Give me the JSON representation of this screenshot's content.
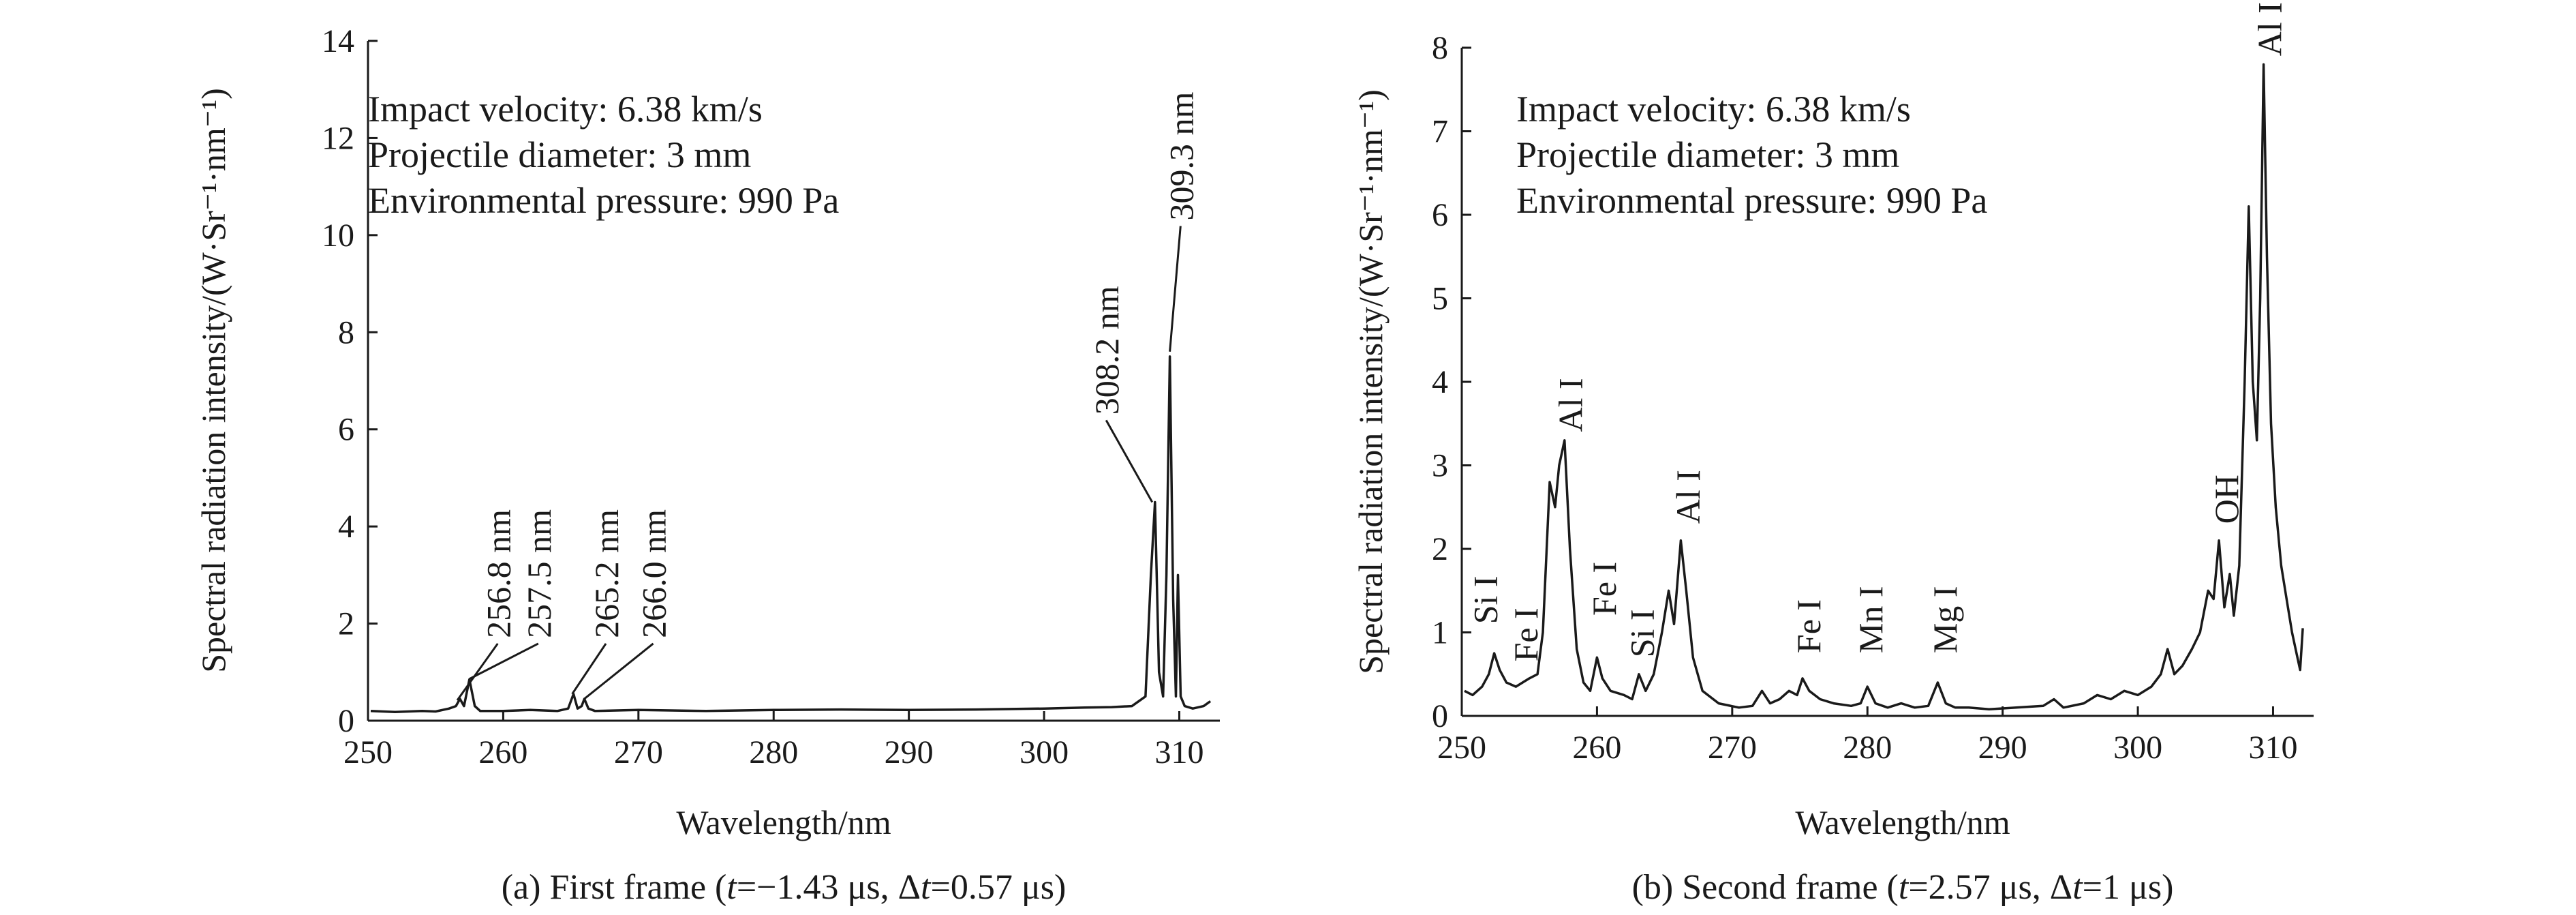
{
  "chart_data": [
    {
      "type": "line",
      "id": "a",
      "xlabel": "Wavelength/nm",
      "ylabel": "Spectral radiation intensity/(W·Sr⁻¹·nm⁻¹)",
      "xlim": [
        250,
        313
      ],
      "ylim": [
        0,
        14
      ],
      "xticks": [
        250,
        260,
        270,
        280,
        290,
        300,
        310
      ],
      "yticks": [
        0,
        2,
        4,
        6,
        8,
        10,
        12,
        14
      ],
      "info": [
        "Impact velocity: 6.38 km/s",
        "Projectile diameter: 3 mm",
        "Environmental pressure: 990 Pa"
      ],
      "caption": {
        "prefix": "(a) First frame (",
        "t_symbol": "t",
        "t_value": "=−1.43 μs, Δ",
        "dt_symbol": "t",
        "dt_value": "=0.57 μs)"
      },
      "annotations": [
        {
          "text": "256.8 nm",
          "x": 256.8,
          "y": 0.45
        },
        {
          "text": "257.5 nm",
          "x": 257.5,
          "y": 0.85
        },
        {
          "text": "265.2 nm",
          "x": 265.2,
          "y": 0.55
        },
        {
          "text": "266.0 nm",
          "x": 266.0,
          "y": 0.45
        },
        {
          "text": "308.2 nm",
          "x": 308.2,
          "y": 4.5
        },
        {
          "text": "309.3 nm",
          "x": 309.3,
          "y": 7.5
        }
      ],
      "series": [
        {
          "x": [
            250.2,
            252,
            254,
            255,
            256,
            256.5,
            256.8,
            257.1,
            257.5,
            257.9,
            258.3,
            260,
            262,
            264,
            264.8,
            265.2,
            265.5,
            265.8,
            266.0,
            266.3,
            266.8,
            270,
            275,
            280,
            285,
            290,
            295,
            300,
            303,
            305,
            306.5,
            307.5,
            307.9,
            308.2,
            308.5,
            308.8,
            309.05,
            309.3,
            309.55,
            309.75,
            309.9,
            310.1,
            310.4,
            311,
            311.8,
            312.3
          ],
          "y": [
            0.2,
            0.18,
            0.2,
            0.19,
            0.25,
            0.3,
            0.45,
            0.3,
            0.85,
            0.3,
            0.2,
            0.2,
            0.22,
            0.2,
            0.25,
            0.55,
            0.25,
            0.3,
            0.45,
            0.25,
            0.2,
            0.22,
            0.2,
            0.22,
            0.23,
            0.22,
            0.23,
            0.25,
            0.27,
            0.28,
            0.3,
            0.5,
            3.0,
            4.5,
            1.0,
            0.5,
            3.0,
            7.5,
            2.5,
            0.5,
            3.0,
            0.5,
            0.3,
            0.25,
            0.3,
            0.4
          ]
        }
      ]
    },
    {
      "type": "line",
      "id": "b",
      "xlabel": "Wavelength/nm",
      "ylabel": "Spectral radiation intensity/(W·Sr⁻¹·nm⁻¹)",
      "xlim": [
        250,
        313
      ],
      "ylim": [
        0,
        8
      ],
      "xticks": [
        250,
        260,
        270,
        280,
        290,
        300,
        310
      ],
      "yticks": [
        0,
        1,
        2,
        3,
        4,
        5,
        6,
        7,
        8
      ],
      "info": [
        "Impact velocity: 6.38 km/s",
        "Projectile diameter: 3 mm",
        "Environmental pressure: 990 Pa"
      ],
      "caption": {
        "prefix": "(b) Second frame (",
        "t_symbol": "t",
        "t_value": "=2.57 μs, Δ",
        "dt_symbol": "t",
        "dt_value": "=1 μs)"
      },
      "annotations": [
        {
          "text": "Si I",
          "x": 251.7,
          "y": 0.85
        },
        {
          "text": "Fe I",
          "x": 254.8,
          "y": 0.45
        },
        {
          "text": "Al I",
          "x": 257.6,
          "y": 3.3
        },
        {
          "text": "Fe I",
          "x": 260.2,
          "y": 0.95
        },
        {
          "text": "Si I",
          "x": 263.1,
          "y": 0.55
        },
        {
          "text": "Al I",
          "x": 266.2,
          "y": 2.15
        },
        {
          "text": "Fe I",
          "x": 275.2,
          "y": 0.55
        },
        {
          "text": "Mn I",
          "x": 279.8,
          "y": 0.55
        },
        {
          "text": "Mg I",
          "x": 285.2,
          "y": 0.55
        },
        {
          "text": "OH",
          "x": 306.0,
          "y": 2.2
        },
        {
          "text": "Al I",
          "x": 309.3,
          "y": 7.8
        }
      ],
      "series": [
        {
          "x": [
            250.2,
            250.8,
            251.5,
            252.0,
            252.4,
            252.8,
            253.3,
            254,
            255,
            255.6,
            256.0,
            256.5,
            256.9,
            257.2,
            257.6,
            258.0,
            258.5,
            259.0,
            259.5,
            260.0,
            260.4,
            261,
            262,
            262.6,
            263.1,
            263.6,
            264.2,
            264.8,
            265.3,
            265.7,
            266.2,
            266.6,
            267.1,
            267.8,
            269,
            270.5,
            271.5,
            272.2,
            272.8,
            273.5,
            274.2,
            274.8,
            275.2,
            275.7,
            276.5,
            277.5,
            278.8,
            279.5,
            280.0,
            280.6,
            281.5,
            282.5,
            283.5,
            284.5,
            285.2,
            285.8,
            286.5,
            287.5,
            289,
            291,
            293,
            293.8,
            294.5,
            296,
            297,
            298,
            299,
            300,
            301,
            301.7,
            302.2,
            302.7,
            303.3,
            304,
            304.6,
            305.2,
            305.6,
            306.0,
            306.4,
            306.8,
            307.1,
            307.5,
            307.9,
            308.2,
            308.5,
            308.8,
            309.05,
            309.3,
            309.55,
            309.85,
            310.2,
            310.6,
            311.0,
            311.4,
            311.8,
            312.0,
            312.2
          ],
          "y": [
            0.3,
            0.25,
            0.35,
            0.5,
            0.75,
            0.55,
            0.4,
            0.35,
            0.45,
            0.5,
            1.0,
            2.8,
            2.5,
            3.0,
            3.3,
            2.0,
            0.8,
            0.4,
            0.3,
            0.7,
            0.45,
            0.3,
            0.25,
            0.2,
            0.5,
            0.3,
            0.5,
            1.0,
            1.5,
            1.1,
            2.1,
            1.5,
            0.7,
            0.3,
            0.15,
            0.1,
            0.12,
            0.3,
            0.15,
            0.2,
            0.3,
            0.25,
            0.45,
            0.3,
            0.2,
            0.15,
            0.12,
            0.15,
            0.35,
            0.15,
            0.1,
            0.15,
            0.1,
            0.12,
            0.4,
            0.15,
            0.1,
            0.1,
            0.08,
            0.1,
            0.12,
            0.2,
            0.1,
            0.15,
            0.25,
            0.2,
            0.3,
            0.25,
            0.35,
            0.5,
            0.8,
            0.5,
            0.6,
            0.8,
            1.0,
            1.5,
            1.4,
            2.1,
            1.3,
            1.7,
            1.2,
            1.8,
            4.0,
            6.1,
            4.0,
            3.3,
            5.0,
            7.8,
            5.5,
            3.5,
            2.5,
            1.8,
            1.4,
            1.0,
            0.7,
            0.55,
            1.05
          ]
        }
      ]
    }
  ]
}
